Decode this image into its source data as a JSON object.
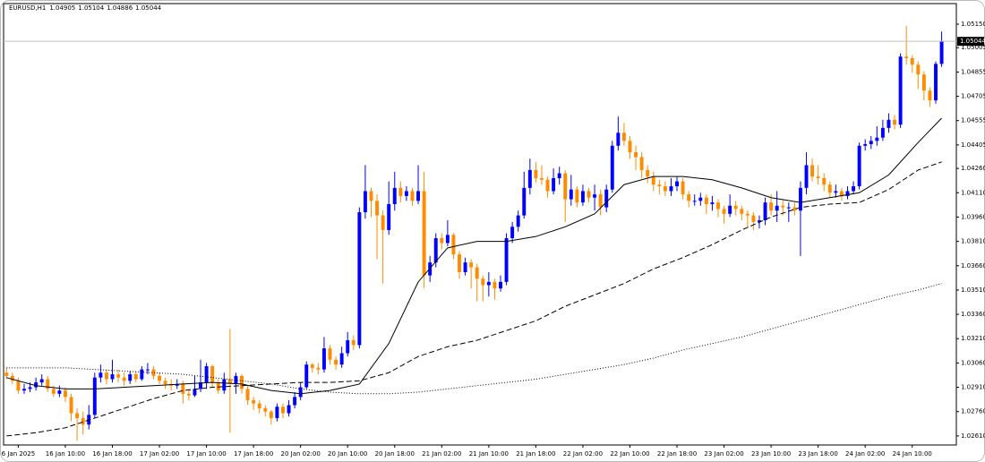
{
  "chart_data": {
    "type": "candlestick",
    "symbol": "EURUSD,H1",
    "up_color": "#0000ff",
    "down_color": "#ff8c00",
    "open": [
      1.03,
      1.0298,
      1.0295,
      1.0289,
      1.029,
      1.0291,
      1.0294,
      1.0296,
      1.029,
      1.0287,
      1.0289,
      1.0285,
      1.0275,
      1.0272,
      1.0268,
      1.0274,
      1.0297,
      1.03,
      1.0296,
      1.0299,
      1.0297,
      1.0295,
      1.0299,
      1.0296,
      1.0302,
      1.0302,
      1.0298,
      1.0295,
      1.0293,
      1.0292,
      1.0293,
      1.0287,
      1.0286,
      1.029,
      1.0294,
      1.0304,
      1.0294,
      1.0289,
      1.0296,
      1.0293,
      1.0298,
      1.029,
      1.0283,
      1.0281,
      1.0278,
      1.0276,
      1.0272,
      1.0279,
      1.0275,
      1.028,
      1.0285,
      1.0291,
      1.0305,
      1.0303,
      1.0302,
      1.0315,
      1.0308,
      1.0305,
      1.0312,
      1.032,
      1.0317,
      1.0399,
      1.0412,
      1.0406,
      1.0397,
      1.0388,
      1.0404,
      1.0414,
      1.0409,
      1.0412,
      1.0406,
      1.0412,
      1.036,
      1.0368,
      1.0383,
      1.038,
      1.0385,
      1.0373,
      1.0362,
      1.0368,
      1.0365,
      1.0358,
      1.0354,
      1.0356,
      1.0352,
      1.0356,
      1.0383,
      1.039,
      1.0397,
      1.0414,
      1.0425,
      1.042,
      1.0419,
      1.0412,
      1.042,
      1.0423,
      1.0407,
      1.0413,
      1.0405,
      1.0412,
      1.0408,
      1.041,
      1.0402,
      1.0413,
      1.044,
      1.0448,
      1.0443,
      1.0436,
      1.0433,
      1.0425,
      1.0421,
      1.0416,
      1.0415,
      1.0412,
      1.0415,
      1.0418,
      1.041,
      1.0406,
      1.0406,
      1.0408,
      1.0404,
      1.0405,
      1.0401,
      1.0398,
      1.0403,
      1.0401,
      1.0398,
      1.0397,
      1.0393,
      1.0394,
      1.0405,
      1.04,
      1.0403,
      1.0402,
      1.0402,
      1.04,
      1.0414,
      1.0428,
      1.0421,
      1.042,
      1.0416,
      1.0411,
      1.0412,
      1.0409,
      1.0412,
      1.0415,
      1.044,
      1.0441,
      1.0443,
      1.0445,
      1.0451,
      1.0456,
      1.0453,
      1.0495,
      1.0494,
      1.049,
      1.0484,
      1.0474,
      1.0468,
      1.04905
    ],
    "high": [
      1.0303,
      1.03,
      1.0297,
      1.0293,
      1.0294,
      1.0297,
      1.0299,
      1.0298,
      1.0292,
      1.0292,
      1.0291,
      1.0287,
      1.0278,
      1.0276,
      1.028,
      1.03,
      1.0305,
      1.0302,
      1.0308,
      1.0302,
      1.03,
      1.0301,
      1.0301,
      1.0304,
      1.0306,
      1.0304,
      1.03,
      1.0297,
      1.0296,
      1.0296,
      1.0295,
      1.029,
      1.0298,
      1.0308,
      1.0306,
      1.0305,
      1.0296,
      1.03,
      1.0327,
      1.03,
      1.0299,
      1.0292,
      1.0285,
      1.0283,
      1.028,
      1.0277,
      1.0281,
      1.0281,
      1.0283,
      1.0288,
      1.0294,
      1.0307,
      1.0306,
      1.0306,
      1.0322,
      1.0317,
      1.031,
      1.0316,
      1.0325,
      1.0323,
      1.0402,
      1.0428,
      1.0414,
      1.041,
      1.04,
      1.0418,
      1.0424,
      1.0418,
      1.0415,
      1.0414,
      1.0428,
      1.0424,
      1.0372,
      1.0386,
      1.0386,
      1.0394,
      1.0386,
      1.0375,
      1.0371,
      1.037,
      1.0367,
      1.036,
      1.0362,
      1.0358,
      1.036,
      1.0386,
      1.0393,
      1.04,
      1.0424,
      1.0432,
      1.043,
      1.0428,
      1.0421,
      1.0426,
      1.0427,
      1.0425,
      1.0422,
      1.0415,
      1.0416,
      1.0414,
      1.0416,
      1.0413,
      1.0416,
      1.0443,
      1.0458,
      1.0454,
      1.0446,
      1.044,
      1.0436,
      1.0428,
      1.0424,
      1.0419,
      1.0418,
      1.042,
      1.0421,
      1.042,
      1.0412,
      1.041,
      1.0411,
      1.041,
      1.0409,
      1.0407,
      1.0403,
      1.041,
      1.0406,
      1.0403,
      1.04,
      1.0399,
      1.0397,
      1.0408,
      1.041,
      1.0412,
      1.0407,
      1.0405,
      1.0405,
      1.0418,
      1.0436,
      1.0432,
      1.0428,
      1.0423,
      1.0418,
      1.0416,
      1.0414,
      1.0415,
      1.0418,
      1.0442,
      1.0444,
      1.0446,
      1.0452,
      1.0456,
      1.046,
      1.0459,
      1.0497,
      1.0514,
      1.0496,
      1.0492,
      1.0486,
      1.0476,
      1.0492,
      1.05104
    ],
    "low": [
      1.0296,
      1.0293,
      1.0287,
      1.0287,
      1.0288,
      1.0289,
      1.0292,
      1.0288,
      1.0285,
      1.0285,
      1.0282,
      1.027,
      1.0258,
      1.0262,
      1.0265,
      1.0272,
      1.0294,
      1.0293,
      1.0294,
      1.0294,
      1.0292,
      1.0293,
      1.0294,
      1.0295,
      1.0299,
      1.0296,
      1.0293,
      1.029,
      1.0289,
      1.029,
      1.0281,
      1.0283,
      1.0285,
      1.0288,
      1.029,
      1.0291,
      1.0287,
      1.0287,
      1.0263,
      1.0287,
      1.0287,
      1.028,
      1.0277,
      1.0275,
      1.0273,
      1.0268,
      1.027,
      1.0272,
      1.0273,
      1.0278,
      1.0283,
      1.029,
      1.03,
      1.0299,
      1.03,
      1.0305,
      1.0302,
      1.0303,
      1.031,
      1.0314,
      1.0315,
      1.0395,
      1.0396,
      1.037,
      1.0355,
      1.0385,
      1.04,
      1.0405,
      1.0406,
      1.0403,
      1.0404,
      1.0352,
      1.0356,
      1.0365,
      1.0376,
      1.0378,
      1.037,
      1.0358,
      1.036,
      1.0352,
      1.0344,
      1.0344,
      1.0347,
      1.0345,
      1.035,
      1.0354,
      1.038,
      1.0387,
      1.0395,
      1.041,
      1.0417,
      1.0416,
      1.0408,
      1.041,
      1.0416,
      1.0393,
      1.0403,
      1.0402,
      1.0403,
      1.0405,
      1.04,
      1.0397,
      1.0399,
      1.0411,
      1.0437,
      1.044,
      1.0432,
      1.0425,
      1.042,
      1.0417,
      1.0412,
      1.041,
      1.0409,
      1.0409,
      1.0412,
      1.0407,
      1.0402,
      1.0403,
      1.0403,
      1.0398,
      1.04,
      1.0396,
      1.0392,
      1.0396,
      1.0397,
      1.0394,
      1.039,
      1.0388,
      1.0389,
      1.0391,
      1.0397,
      1.0393,
      1.0397,
      1.0393,
      1.0397,
      1.0372,
      1.041,
      1.0418,
      1.0416,
      1.0412,
      1.0408,
      1.0408,
      1.0406,
      1.0407,
      1.041,
      1.0413,
      1.0437,
      1.0438,
      1.044,
      1.0443,
      1.0448,
      1.045,
      1.0451,
      1.049,
      1.0485,
      1.0475,
      1.0468,
      1.0464,
      1.0466,
      1.04886
    ],
    "close": [
      1.0298,
      1.0295,
      1.0289,
      1.029,
      1.0291,
      1.0294,
      1.0296,
      1.029,
      1.0287,
      1.0289,
      1.0285,
      1.0275,
      1.0272,
      1.0268,
      1.0274,
      1.0297,
      1.03,
      1.0296,
      1.0299,
      1.0297,
      1.0295,
      1.0299,
      1.0296,
      1.0302,
      1.0302,
      1.0298,
      1.0295,
      1.0293,
      1.0292,
      1.0293,
      1.0287,
      1.0286,
      1.029,
      1.0294,
      1.0304,
      1.0294,
      1.0289,
      1.0296,
      1.0293,
      1.0298,
      1.029,
      1.0283,
      1.0281,
      1.0278,
      1.0276,
      1.0272,
      1.0279,
      1.0275,
      1.028,
      1.0285,
      1.0291,
      1.0305,
      1.0303,
      1.0302,
      1.0315,
      1.0308,
      1.0305,
      1.0312,
      1.032,
      1.0317,
      1.0399,
      1.0412,
      1.0406,
      1.0397,
      1.0388,
      1.0404,
      1.0414,
      1.0409,
      1.0412,
      1.0406,
      1.0412,
      1.036,
      1.0368,
      1.0383,
      1.038,
      1.0385,
      1.0373,
      1.0362,
      1.0368,
      1.0365,
      1.0358,
      1.0354,
      1.0356,
      1.0352,
      1.0356,
      1.0383,
      1.039,
      1.0397,
      1.0414,
      1.0425,
      1.042,
      1.0419,
      1.0412,
      1.042,
      1.0423,
      1.0407,
      1.0413,
      1.0405,
      1.0412,
      1.0408,
      1.041,
      1.0402,
      1.0413,
      1.044,
      1.0448,
      1.0443,
      1.0436,
      1.0433,
      1.0425,
      1.0421,
      1.0416,
      1.0415,
      1.0412,
      1.0415,
      1.0418,
      1.041,
      1.0406,
      1.0406,
      1.0408,
      1.0404,
      1.0405,
      1.0401,
      1.0398,
      1.0403,
      1.0401,
      1.0398,
      1.0397,
      1.0393,
      1.0394,
      1.0405,
      1.04,
      1.0403,
      1.0402,
      1.0402,
      1.04,
      1.0414,
      1.0428,
      1.0421,
      1.042,
      1.0416,
      1.0411,
      1.0412,
      1.0409,
      1.0412,
      1.0415,
      1.044,
      1.0441,
      1.0443,
      1.0445,
      1.0451,
      1.0456,
      1.0453,
      1.0495,
      1.0494,
      1.049,
      1.0484,
      1.0474,
      1.0468,
      1.04905,
      1.05044
    ],
    "lines_x": [
      0,
      5,
      10,
      15,
      20,
      25,
      30,
      35,
      40,
      45,
      50,
      55,
      60,
      65,
      70,
      75,
      80,
      85,
      90,
      95,
      100,
      105,
      110,
      115,
      120,
      125,
      130,
      135,
      140,
      145,
      150,
      155,
      159
    ],
    "lines": [
      {
        "color": "#000000",
        "style": "solid",
        "values": [
          1.0297,
          1.0292,
          1.029,
          1.029,
          1.0291,
          1.0292,
          1.0293,
          1.0294,
          1.0293,
          1.0289,
          1.0287,
          1.0289,
          1.0293,
          1.0318,
          1.0356,
          1.0377,
          1.0381,
          1.0381,
          1.0384,
          1.039,
          1.0398,
          1.0416,
          1.0421,
          1.0421,
          1.0419,
          1.0414,
          1.0408,
          1.0405,
          1.0408,
          1.0411,
          1.0422,
          1.0442,
          1.0457
        ]
      },
      {
        "color": "#000000",
        "style": "dashed",
        "values": [
          1.0261,
          1.0263,
          1.0266,
          1.0272,
          1.0278,
          1.0284,
          1.0289,
          1.0291,
          1.0292,
          1.0293,
          1.0294,
          1.0294,
          1.0295,
          1.03,
          1.031,
          1.0316,
          1.032,
          1.0326,
          1.0332,
          1.0341,
          1.0348,
          1.0355,
          1.0364,
          1.0371,
          1.0379,
          1.0388,
          1.0396,
          1.0402,
          1.0404,
          1.0405,
          1.0413,
          1.0425,
          1.043
        ]
      },
      {
        "color": "#000000",
        "style": "dotted",
        "values": [
          1.0303,
          1.0303,
          1.0303,
          1.0302,
          1.0301,
          1.03,
          1.0299,
          1.0297,
          1.0295,
          1.0293,
          1.029,
          1.0288,
          1.0287,
          1.0287,
          1.0288,
          1.029,
          1.0292,
          1.0294,
          1.0296,
          1.0299,
          1.0302,
          1.0305,
          1.0309,
          1.0314,
          1.0318,
          1.0322,
          1.0327,
          1.0332,
          1.0337,
          1.0342,
          1.0347,
          1.0351,
          1.0355
        ]
      }
    ],
    "xlim": [
      -0.5,
      161.5
    ],
    "xticks": [
      {
        "value": 2,
        "label": "6 Jan 2025"
      },
      {
        "value": 10,
        "label": "16 Jan 10:00"
      },
      {
        "value": 18,
        "label": "16 Jan 18:00"
      },
      {
        "value": 26,
        "label": "17 Jan 02:00"
      },
      {
        "value": 34,
        "label": "17 Jan 10:00"
      },
      {
        "value": 42,
        "label": "17 Jan 18:00"
      },
      {
        "value": 50,
        "label": "20 Jan 02:00"
      },
      {
        "value": 58,
        "label": "20 Jan 10:00"
      },
      {
        "value": 66,
        "label": "20 Jan 18:00"
      },
      {
        "value": 74,
        "label": "21 Jan 02:00"
      },
      {
        "value": 82,
        "label": "21 Jan 10:00"
      },
      {
        "value": 90,
        "label": "21 Jan 18:00"
      },
      {
        "value": 98,
        "label": "22 Jan 02:00"
      },
      {
        "value": 106,
        "label": "22 Jan 10:00"
      },
      {
        "value": 114,
        "label": "22 Jan 18:00"
      },
      {
        "value": 122,
        "label": "23 Jan 02:00"
      },
      {
        "value": 130,
        "label": "23 Jan 10:00"
      },
      {
        "value": 138,
        "label": "23 Jan 18:00"
      },
      {
        "value": 146,
        "label": "24 Jan 02:00"
      },
      {
        "value": 154,
        "label": "24 Jan 10:00"
      }
    ],
    "ylim": [
      1.02554,
      1.05277
    ],
    "yticks": [
      {
        "value": 1.0515,
        "label": "1.05150"
      },
      {
        "value": 1.05005,
        "label": "1.05005"
      },
      {
        "value": 1.04855,
        "label": "1.04855"
      },
      {
        "value": 1.04705,
        "label": "1.04705"
      },
      {
        "value": 1.04555,
        "label": "1.04555"
      },
      {
        "value": 1.04405,
        "label": "1.04405"
      },
      {
        "value": 1.0426,
        "label": "1.04260"
      },
      {
        "value": 1.0411,
        "label": "1.04110"
      },
      {
        "value": 1.0396,
        "label": "1.03960"
      },
      {
        "value": 1.0381,
        "label": "1.03810"
      },
      {
        "value": 1.0366,
        "label": "1.03660"
      },
      {
        "value": 1.0351,
        "label": "1.03510"
      },
      {
        "value": 1.0336,
        "label": "1.03360"
      },
      {
        "value": 1.0321,
        "label": "1.03210"
      },
      {
        "value": 1.0306,
        "label": "1.03060"
      },
      {
        "value": 1.0291,
        "label": "1.02910"
      },
      {
        "value": 1.0276,
        "label": "1.02760"
      },
      {
        "value": 1.0261,
        "label": "1.02610"
      }
    ],
    "grid": false
  }
}
